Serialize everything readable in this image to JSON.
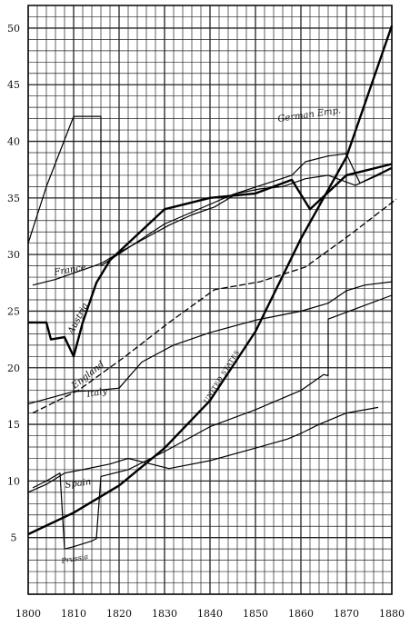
{
  "chart_data": {
    "type": "line",
    "title": "",
    "xlabel": "",
    "ylabel": "",
    "xlim": [
      1800,
      1880
    ],
    "ylim": [
      0,
      52
    ],
    "grid": true,
    "x_ticks": [
      "1800",
      "1810",
      "1820",
      "1830",
      "1840",
      "1850",
      "1860",
      "1870",
      "1880"
    ],
    "y_ticks": [
      "5",
      "10",
      "15",
      "20",
      "25",
      "30",
      "35",
      "40",
      "45",
      "50"
    ],
    "series": [
      {
        "name": "France",
        "style": "thin",
        "points": [
          [
            1801,
            27.3
          ],
          [
            1806,
            27.8
          ],
          [
            1811,
            28.5
          ],
          [
            1816,
            29.2
          ],
          [
            1821,
            30.4
          ],
          [
            1826,
            31.5
          ],
          [
            1831,
            32.6
          ],
          [
            1836,
            33.5
          ],
          [
            1841,
            34.2
          ],
          [
            1846,
            35.4
          ],
          [
            1851,
            35.8
          ],
          [
            1856,
            36.0
          ],
          [
            1861,
            36.7
          ],
          [
            1866,
            37.0
          ],
          [
            1872,
            36.1
          ],
          [
            1876,
            36.9
          ],
          [
            1880,
            37.7
          ]
        ]
      },
      {
        "name": "Austria",
        "style": "bold",
        "points": [
          [
            1800,
            24.0
          ],
          [
            1804,
            24.0
          ],
          [
            1805,
            22.5
          ],
          [
            1808,
            22.7
          ],
          [
            1810,
            21.0
          ],
          [
            1812,
            24.0
          ],
          [
            1815,
            27.5
          ],
          [
            1818,
            29.5
          ],
          [
            1826,
            32.5
          ],
          [
            1830,
            34.0
          ],
          [
            1840,
            35.0
          ],
          [
            1850,
            35.4
          ],
          [
            1858,
            36.6
          ],
          [
            1862,
            34.0
          ],
          [
            1866,
            35.5
          ],
          [
            1870,
            37.0
          ],
          [
            1880,
            38.0
          ]
        ]
      },
      {
        "name": "German Emp.",
        "style": "thin",
        "points": [
          [
            1800,
            31.0
          ],
          [
            1804,
            36.0
          ],
          [
            1810,
            42.2
          ],
          [
            1816,
            42.2
          ],
          [
            1816,
            29.0
          ],
          [
            1830,
            32.7
          ],
          [
            1845,
            35.3
          ],
          [
            1858,
            37.0
          ],
          [
            1861,
            38.2
          ],
          [
            1866,
            38.7
          ],
          [
            1870,
            38.9
          ],
          [
            1873,
            36.3
          ],
          [
            1877,
            37.0
          ],
          [
            1880,
            37.6
          ]
        ]
      },
      {
        "name": "England",
        "style": "dashed",
        "points": [
          [
            1801,
            16.0
          ],
          [
            1811,
            18.0
          ],
          [
            1821,
            20.9
          ],
          [
            1831,
            24.0
          ],
          [
            1841,
            26.9
          ],
          [
            1851,
            27.6
          ],
          [
            1861,
            28.9
          ],
          [
            1871,
            31.8
          ],
          [
            1881,
            34.9
          ]
        ]
      },
      {
        "name": "Italy",
        "style": "thin",
        "points": [
          [
            1800,
            16.8
          ],
          [
            1810,
            17.9
          ],
          [
            1815,
            18.0
          ],
          [
            1820,
            18.2
          ],
          [
            1825,
            20.5
          ],
          [
            1832,
            22.0
          ],
          [
            1840,
            23.1
          ],
          [
            1850,
            24.2
          ],
          [
            1860,
            25.0
          ],
          [
            1866,
            25.7
          ],
          [
            1870,
            26.8
          ],
          [
            1874,
            27.3
          ],
          [
            1880,
            27.6
          ]
        ]
      },
      {
        "name": "United States",
        "style": "bold",
        "points": [
          [
            1800,
            5.3
          ],
          [
            1810,
            7.2
          ],
          [
            1820,
            9.6
          ],
          [
            1830,
            12.9
          ],
          [
            1840,
            17.1
          ],
          [
            1850,
            23.2
          ],
          [
            1860,
            31.4
          ],
          [
            1870,
            38.6
          ],
          [
            1880,
            50.2
          ]
        ]
      },
      {
        "name": "Spain",
        "style": "thin",
        "points": [
          [
            1800,
            9.0
          ],
          [
            1804,
            9.7
          ],
          [
            1808,
            10.7
          ],
          [
            1812,
            11.0
          ],
          [
            1818,
            11.5
          ],
          [
            1822,
            12.0
          ],
          [
            1831,
            11.1
          ],
          [
            1840,
            11.8
          ],
          [
            1850,
            12.9
          ],
          [
            1857,
            13.7
          ],
          [
            1860,
            14.2
          ],
          [
            1864,
            15.0
          ],
          [
            1870,
            16.0
          ],
          [
            1877,
            16.5
          ]
        ]
      },
      {
        "name": "Prussia",
        "style": "thin",
        "points": [
          [
            1801,
            9.4
          ],
          [
            1804,
            10.0
          ],
          [
            1807,
            10.7
          ],
          [
            1808,
            4.0
          ],
          [
            1810,
            4.2
          ],
          [
            1814,
            4.7
          ],
          [
            1815,
            4.9
          ],
          [
            1816,
            10.4
          ],
          [
            1822,
            11.0
          ],
          [
            1830,
            12.6
          ],
          [
            1840,
            14.8
          ],
          [
            1850,
            16.3
          ],
          [
            1860,
            18.0
          ],
          [
            1865,
            19.4
          ],
          [
            1866,
            19.3
          ],
          [
            1866,
            24.3
          ],
          [
            1870,
            24.9
          ],
          [
            1880,
            26.4
          ]
        ]
      }
    ]
  },
  "labels": {
    "france": "France",
    "austria": "Austria",
    "german": "German Emp.",
    "england": "England",
    "italy": "Italy",
    "us": "UNITED STATES",
    "spain": "Spain",
    "prussia": "Prussia"
  }
}
